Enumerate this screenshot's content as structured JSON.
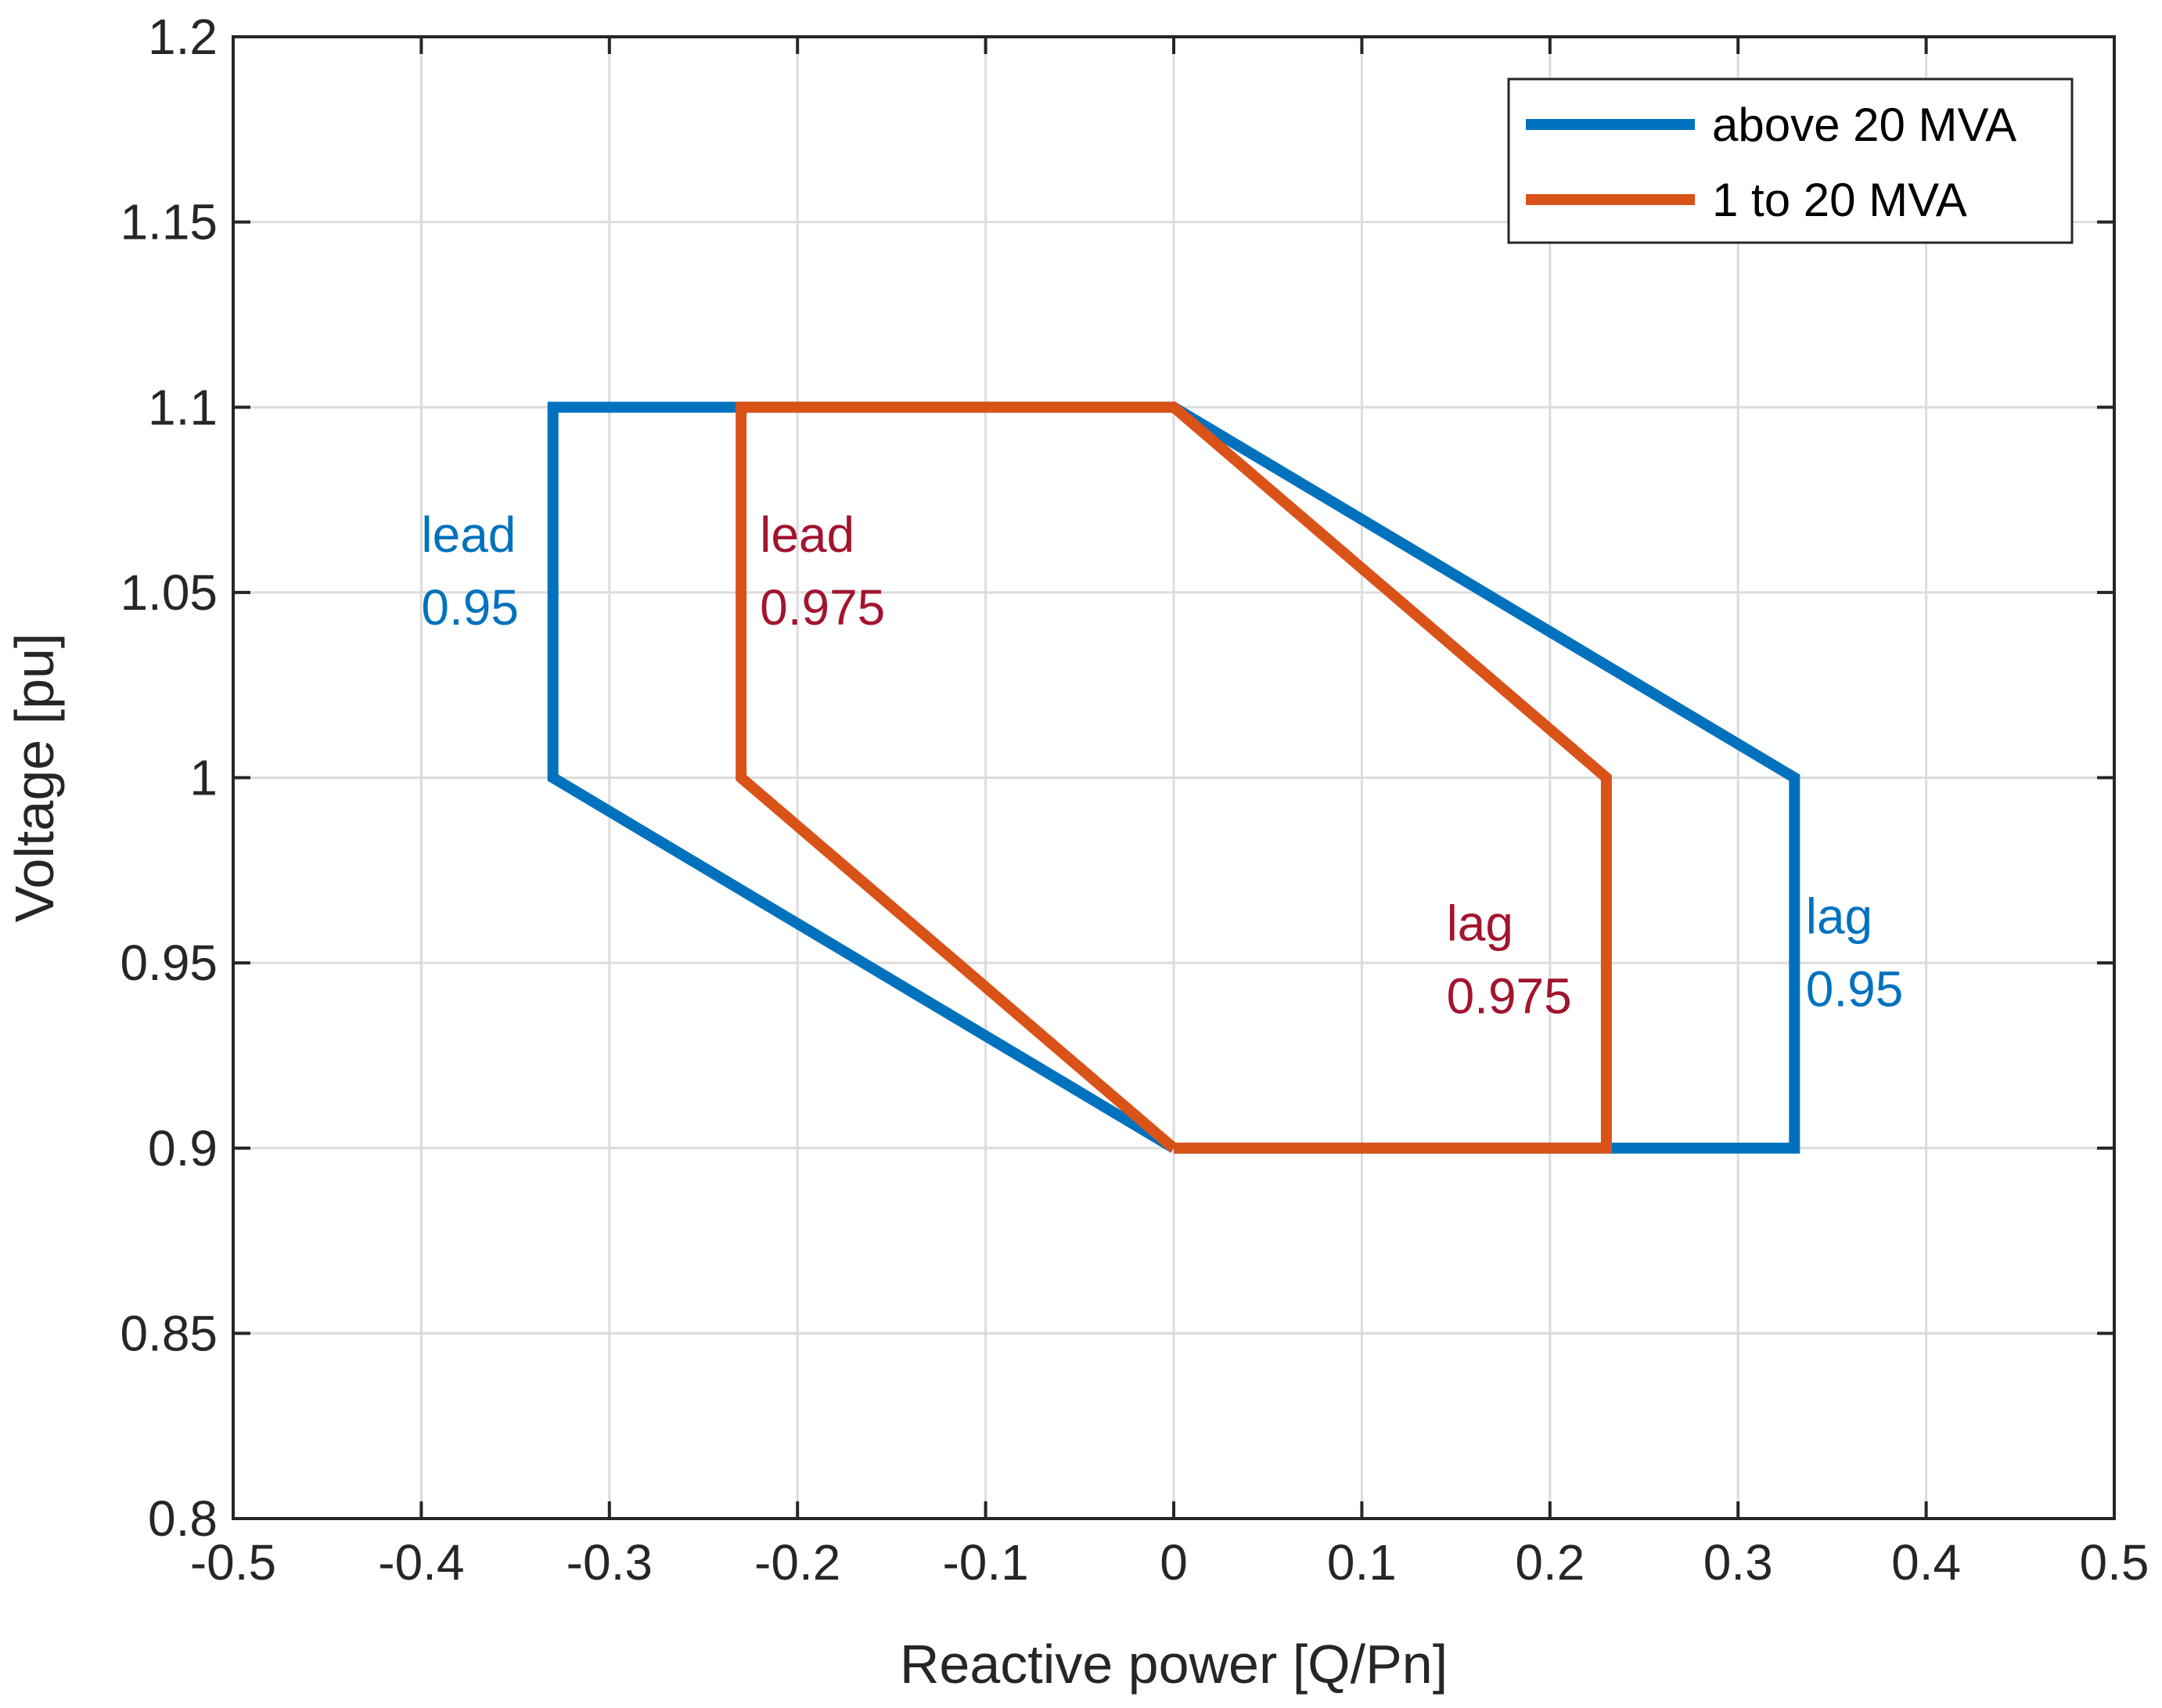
{
  "chart_data": {
    "type": "line",
    "title": "",
    "xlabel": "Reactive power [Q/Pn]",
    "ylabel": "Voltage [pu]",
    "xlim": [
      -0.5,
      0.5
    ],
    "ylim": [
      0.8,
      1.2
    ],
    "grid": true,
    "x_ticks": [
      -0.5,
      -0.4,
      -0.3,
      -0.2,
      -0.1,
      0,
      0.1,
      0.2,
      0.3,
      0.4,
      0.5
    ],
    "x_tick_labels": [
      "-0.5",
      "-0.4",
      "-0.3",
      "-0.2",
      "-0.1",
      "0",
      "0.1",
      "0.2",
      "0.3",
      "0.4",
      "0.5"
    ],
    "y_ticks": [
      0.8,
      0.85,
      0.9,
      0.95,
      1.0,
      1.05,
      1.1,
      1.15,
      1.2
    ],
    "y_tick_labels": [
      "0.8",
      "0.85",
      "0.9",
      "0.95",
      "1",
      "1.05",
      "1.1",
      "1.15",
      "1.2"
    ],
    "legend_position": "top-right",
    "series": [
      {
        "name": "above 20 MVA",
        "color": "#0072BD",
        "x": [
          0,
          -0.33,
          -0.33,
          0,
          0.33,
          0.33,
          0
        ],
        "y": [
          0.9,
          1.0,
          1.1,
          1.1,
          1.0,
          0.9,
          0.9
        ]
      },
      {
        "name": "1 to 20 MVA",
        "color": "#D95319",
        "x": [
          0,
          -0.23,
          -0.23,
          0,
          0.23,
          0.23,
          0
        ],
        "y": [
          0.9,
          1.0,
          1.1,
          1.1,
          1.0,
          0.9,
          0.9
        ]
      }
    ],
    "annotations": [
      {
        "line1": "lead",
        "line2": "0.95",
        "x": -0.4,
        "y": 1.061,
        "color": "#0072BD"
      },
      {
        "line1": "lead",
        "line2": "0.975",
        "x": -0.22,
        "y": 1.061,
        "color": "#A2142F"
      },
      {
        "line1": "lag",
        "line2": "0.975",
        "x": 0.145,
        "y": 0.956,
        "color": "#A2142F"
      },
      {
        "line1": "lag",
        "line2": "0.95",
        "x": 0.336,
        "y": 0.958,
        "color": "#0072BD"
      }
    ]
  }
}
